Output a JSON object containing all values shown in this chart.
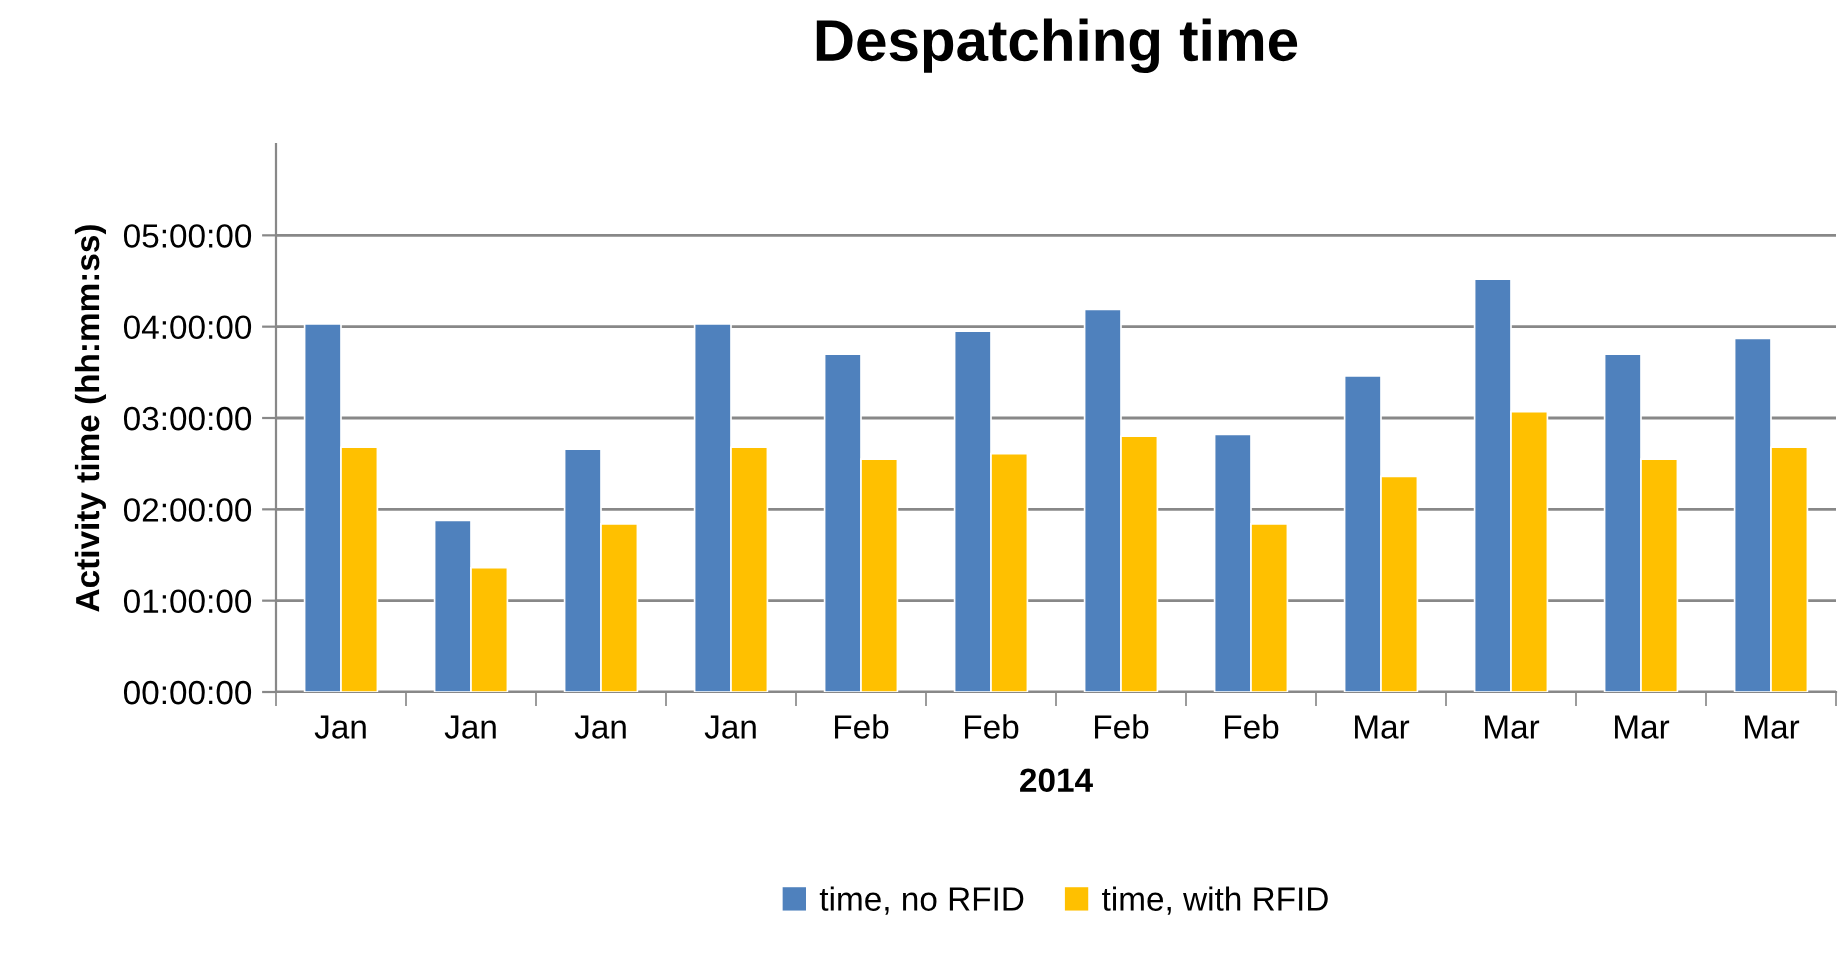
{
  "chart_data": {
    "type": "bar",
    "title": "Despatching time",
    "xlabel": "2014",
    "ylabel": "Activity time (hh:mm:ss)",
    "categories": [
      "Jan",
      "Jan",
      "Jan",
      "Jan",
      "Feb",
      "Feb",
      "Feb",
      "Feb",
      "Mar",
      "Mar",
      "Mar",
      "Mar"
    ],
    "series": [
      {
        "name": "time, no RFID",
        "color": "#4f81bd",
        "values": [
          4.03,
          1.88,
          2.66,
          4.03,
          3.7,
          3.95,
          4.19,
          2.82,
          3.46,
          4.52,
          3.7,
          3.87
        ]
      },
      {
        "name": "time, with RFID",
        "color": "#ffc000",
        "values": [
          2.68,
          1.36,
          1.84,
          2.68,
          2.55,
          2.61,
          2.8,
          1.84,
          2.36,
          3.07,
          2.55,
          2.68
        ]
      }
    ],
    "ylim": [
      0,
      6
    ],
    "yticks": [
      {
        "value": 0,
        "label": "00:00:00"
      },
      {
        "value": 1,
        "label": "01:00:00"
      },
      {
        "value": 2,
        "label": "02:00:00"
      },
      {
        "value": 3,
        "label": "03:00:00"
      },
      {
        "value": 4,
        "label": "04:00:00"
      },
      {
        "value": 5,
        "label": "05:00:00"
      }
    ],
    "grid": "y",
    "legend": "bottom"
  }
}
